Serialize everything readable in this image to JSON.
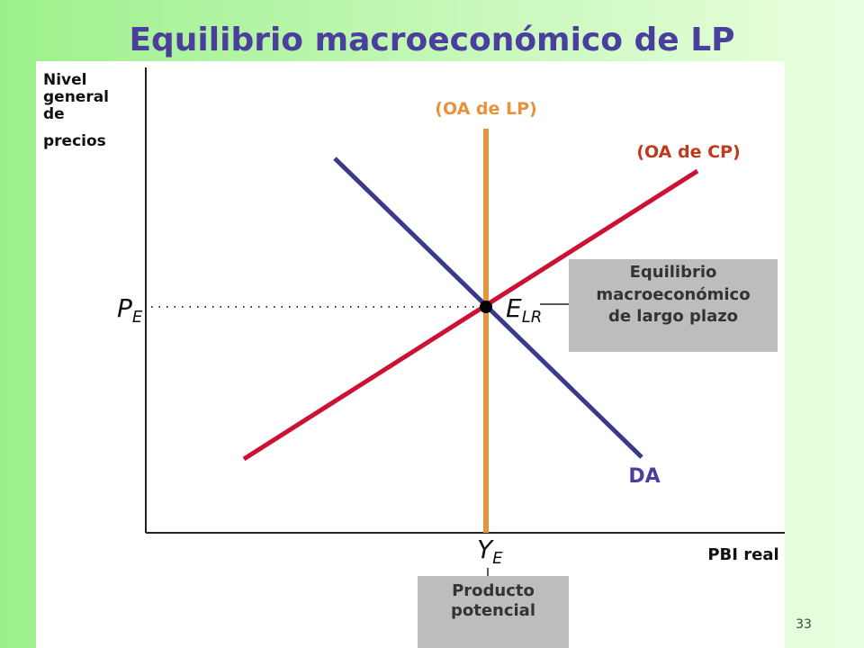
{
  "title": "Equilibrio macroeconómico de LP",
  "y_axis_label": [
    "Nivel",
    "general",
    "de",
    "precios"
  ],
  "x_axis_label": "PBI real",
  "curves": {
    "lras": "(OA de LP)",
    "sras": "(OA de CP)",
    "ad": "DA"
  },
  "price_label": {
    "main": "P",
    "sub": "E"
  },
  "equilibrium_label": {
    "main": "E",
    "sub": "LR"
  },
  "output_label": {
    "main": "Y",
    "sub": "E"
  },
  "callouts": {
    "equilibrium": [
      "Equilibrio",
      "macroeconómico",
      "de largo plazo"
    ],
    "potential": [
      "Producto",
      "potencial"
    ]
  },
  "page_number": "33"
}
